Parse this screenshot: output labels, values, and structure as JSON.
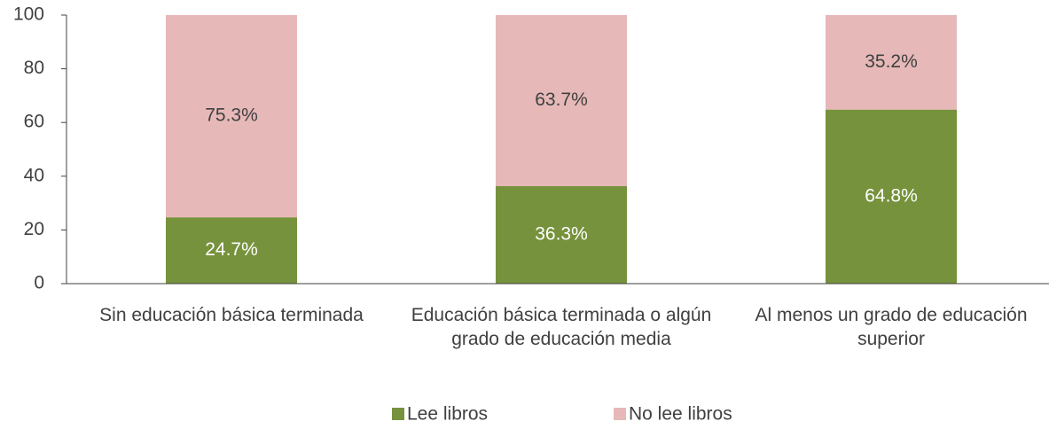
{
  "chart_data": {
    "type": "stacked_bar",
    "categories": [
      "Sin educación básica terminada",
      "Educación básica terminada o algún grado de educación media",
      "Al menos un grado de educación superior"
    ],
    "series": [
      {
        "name": "Lee libros",
        "color": "#76923c",
        "label_color": "#ffffff",
        "values": [
          24.7,
          36.3,
          64.8
        ],
        "value_labels": [
          "24.7%",
          "36.3%",
          "64.8%"
        ]
      },
      {
        "name": "No lee libros",
        "color": "#e6b9b8",
        "label_color": "#404040",
        "values": [
          75.3,
          63.7,
          35.2
        ],
        "value_labels": [
          "75.3%",
          "63.7%",
          "35.2%"
        ]
      }
    ],
    "ylim": [
      0,
      100
    ],
    "yticks": [
      0,
      20,
      40,
      60,
      80,
      100
    ],
    "grid": false,
    "legend": "bottom"
  }
}
